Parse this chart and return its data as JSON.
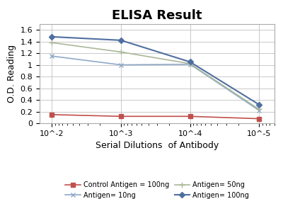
{
  "title": "ELISA Result",
  "xlabel": "Serial Dilutions  of Antibody",
  "ylabel": "O.D. Reading",
  "x_values": [
    0.01,
    0.001,
    0.0001,
    1e-05
  ],
  "x_labels": [
    "10^-2",
    "10^-3",
    "10^-4",
    "10^-5"
  ],
  "series": [
    {
      "label": "Control Antigen = 100ng",
      "color": "#c0504d",
      "marker": "s",
      "markersize": 4,
      "linewidth": 1.2,
      "linestyle": "-",
      "values": [
        0.15,
        0.12,
        0.12,
        0.08
      ]
    },
    {
      "label": "Antigen= 10ng",
      "color": "#8fa9c8",
      "marker": "x",
      "markersize": 5,
      "linewidth": 1.2,
      "linestyle": "-",
      "values": [
        1.15,
        1.0,
        1.01,
        0.22
      ]
    },
    {
      "label": "Antigen= 50ng",
      "color": "#aab899",
      "marker": "+",
      "markersize": 6,
      "linewidth": 1.2,
      "linestyle": "-",
      "values": [
        1.38,
        1.22,
        1.02,
        0.24
      ]
    },
    {
      "label": "Antigen= 100ng",
      "color": "#4f6fa0",
      "marker": "D",
      "markersize": 4,
      "linewidth": 1.5,
      "linestyle": "-",
      "values": [
        1.48,
        1.42,
        1.05,
        0.32
      ]
    }
  ],
  "ylim": [
    0,
    1.7
  ],
  "yticks": [
    0,
    0.2,
    0.4,
    0.6,
    0.8,
    1.0,
    1.2,
    1.4,
    1.6
  ],
  "background_color": "#ffffff",
  "grid_color": "#c0c0c0",
  "title_fontsize": 13,
  "axis_label_fontsize": 9,
  "tick_fontsize": 8,
  "legend_fontsize": 7
}
